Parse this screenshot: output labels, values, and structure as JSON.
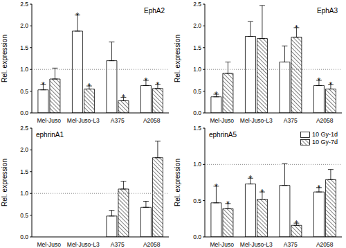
{
  "chart_data": [
    {
      "type": "bar",
      "title": "EphA2",
      "y_label": "Rel. expression",
      "categories": [
        "Mel-Juso",
        "Mel-Juso-L3",
        "A375",
        "A2058"
      ],
      "series": [
        {
          "name": "10 Gy-1d",
          "color": "#ffffff",
          "values": [
            0.53,
            1.88,
            1.2,
            0.63
          ],
          "errors": [
            0.13,
            0.37,
            0.43,
            0.12
          ],
          "annotations": [
            "*",
            "*",
            null,
            "*"
          ]
        },
        {
          "name": "10 Gy-7d",
          "color": "#ffffff",
          "values": [
            0.78,
            0.55,
            0.28,
            0.56
          ],
          "errors": [
            0.25,
            0.07,
            0.08,
            0.1
          ],
          "annotations": [
            null,
            "*",
            "*",
            "*"
          ]
        }
      ],
      "ylim": [
        0,
        2.5
      ],
      "yticks": [
        {
          "value": 0,
          "label": "0.0"
        },
        {
          "value": 0.5,
          "label": "0.5"
        },
        {
          "value": 1,
          "label": "1.0"
        },
        {
          "value": 1.5,
          "label": "1.5"
        },
        {
          "value": 2,
          "label": "2.0"
        },
        {
          "value": 2.5,
          "label": "2.5"
        }
      ],
      "reference": 1
    },
    {
      "type": "bar",
      "title": "EphA3",
      "y_label": "Rel. expression",
      "categories": [
        "Mel-Juso",
        "Mel-Juso-L3",
        "A375",
        "A2058"
      ],
      "series": [
        {
          "name": "10 Gy-1d",
          "color": "#ffffff",
          "values": [
            0.37,
            1.76,
            1.17,
            0.63
          ],
          "errors": [
            0.06,
            0.34,
            0.37,
            0.12
          ],
          "annotations": [
            "*",
            null,
            null,
            "*"
          ]
        },
        {
          "name": "10 Gy-7d",
          "color": "#ffffff",
          "values": [
            0.91,
            1.71,
            1.74,
            0.55
          ],
          "errors": [
            0.26,
            0.76,
            0.22,
            0.1
          ],
          "annotations": [
            null,
            null,
            "*",
            "*"
          ]
        }
      ],
      "ylim": [
        0,
        2.5
      ],
      "yticks": [
        {
          "value": 0,
          "label": "0.0"
        },
        {
          "value": 0.5,
          "label": "0.5"
        },
        {
          "value": 1,
          "label": "1.0"
        },
        {
          "value": 1.5,
          "label": "1.5"
        },
        {
          "value": 2,
          "label": "2.0"
        },
        {
          "value": 2.5,
          "label": "2.5"
        }
      ],
      "reference": 1
    },
    {
      "type": "bar",
      "title": "ephrinA1",
      "y_label": "Rel. expression",
      "categories": [
        "Mel-Juso",
        "Mel-Juso-L3",
        "A375",
        "A2058"
      ],
      "series": [
        {
          "name": "10 Gy-1d",
          "color": "#ffffff",
          "values": [
            null,
            null,
            0.48,
            0.68
          ],
          "errors": [
            null,
            null,
            0.13,
            0.14
          ],
          "annotations": [
            null,
            null,
            "*",
            null
          ]
        },
        {
          "name": "10 Gy-7d",
          "color": "#ffffff",
          "values": [
            null,
            null,
            1.1,
            1.82
          ],
          "errors": [
            null,
            null,
            0.18,
            0.38
          ],
          "annotations": [
            null,
            null,
            null,
            "*"
          ]
        }
      ],
      "ylim": [
        0,
        2.5
      ],
      "yticks": [
        {
          "value": 0,
          "label": "0.0"
        },
        {
          "value": 0.5,
          "label": "0.5"
        },
        {
          "value": 1,
          "label": "1.0"
        },
        {
          "value": 1.5,
          "label": "1.5"
        },
        {
          "value": 2,
          "label": "2.0"
        },
        {
          "value": 2.5,
          "label": "2.5"
        }
      ],
      "reference": 1
    },
    {
      "type": "bar",
      "title": "ephrinA5",
      "y_label": "Rel. expression",
      "categories": [
        "Mel-Juso",
        "Mel-Juso-L3",
        "A375",
        "A2058"
      ],
      "series": [
        {
          "name": "10 Gy-1d",
          "color": "#ffffff",
          "values": [
            0.47,
            0.73,
            0.71,
            0.62
          ],
          "errors": [
            0.23,
            0.08,
            0.3,
            0.06
          ],
          "annotations": [
            "*",
            "*",
            null,
            "*"
          ]
        },
        {
          "name": "10 Gy-7d",
          "color": "#ffffff",
          "values": [
            0.39,
            0.52,
            0.16,
            0.79
          ],
          "errors": [
            0.07,
            0.1,
            0.03,
            0.14
          ],
          "annotations": [
            "*",
            "*",
            "*",
            null
          ]
        }
      ],
      "ylim": [
        0,
        1.5
      ],
      "yticks": [
        {
          "value": 0,
          "label": "0.0"
        },
        {
          "value": 0.5,
          "label": "0.5"
        },
        {
          "value": 1,
          "label": "1.0"
        },
        {
          "value": 1.5,
          "label": "1.5"
        }
      ],
      "legend": "upper right",
      "reference": 1
    }
  ]
}
